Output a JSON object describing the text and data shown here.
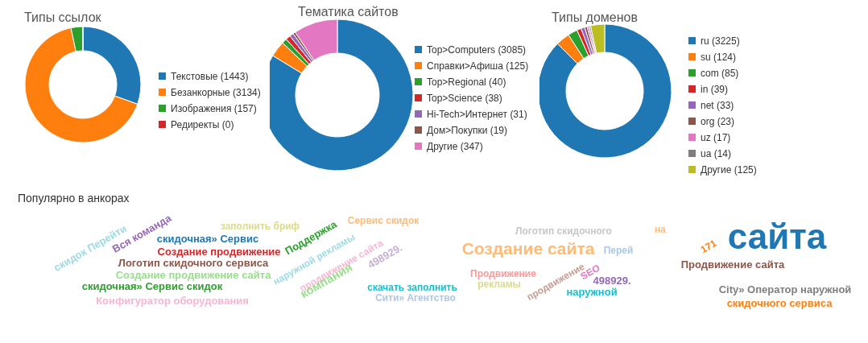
{
  "chart_data": [
    {
      "type": "donut",
      "title": "Типы ссылок",
      "categories": [
        "Текстовые (1443)",
        "Безанкорные (3134)",
        "Изображения (157)",
        "Редиректы (0)"
      ],
      "values": [
        1443,
        3134,
        157,
        0
      ],
      "colors": [
        "#1f77b4",
        "#ff7f0e",
        "#2ca02c",
        "#d62728"
      ],
      "legend": "right"
    },
    {
      "type": "donut",
      "title": "Тематика сайтов",
      "categories": [
        "Top>Computers (3085)",
        "Справки>Афиша (125)",
        "Top>Regional (40)",
        "Top>Science (38)",
        "Hi-Tech>Интернет (31)",
        "Дом>Покупки (19)",
        "Другие (347)"
      ],
      "values": [
        3085,
        125,
        40,
        38,
        31,
        19,
        347
      ],
      "colors": [
        "#1f77b4",
        "#ff7f0e",
        "#2ca02c",
        "#d62728",
        "#9467bd",
        "#8c564b",
        "#e377c2"
      ],
      "legend": "right"
    },
    {
      "type": "donut",
      "title": "Типы доменов",
      "categories": [
        "ru (3225)",
        "su (124)",
        "com (85)",
        "in (39)",
        "net (33)",
        "org (23)",
        "uz (17)",
        "ua (14)",
        "Другие (125)"
      ],
      "values": [
        3225,
        124,
        85,
        39,
        33,
        23,
        17,
        14,
        125
      ],
      "colors": [
        "#1f77b4",
        "#ff7f0e",
        "#2ca02c",
        "#d62728",
        "#9467bd",
        "#8c564b",
        "#e377c2",
        "#7f7f7f",
        "#bcbd22"
      ],
      "legend": "right"
    },
    {
      "type": "other",
      "title": "Популярно в анкорах",
      "annotations": [
        "скидок Перейти",
        "Вся команда",
        "скидочная» Сервис",
        "Создание продвижение",
        "Логотип скидочного сервиса",
        "Создание продвижение сайта",
        "скидочная» Сервис скидок",
        "Конфигуратор оборудования",
        "заполнить бриф",
        "Поддержка",
        "Сервис скидок",
        "наружной рекламы",
        "продвижение сайта",
        "компания",
        "498929.",
        "скачать заполнить",
        "Сити» Агентство",
        "Логотип скидочного",
        "Создание сайта",
        "Перей",
        "на",
        "171",
        "сайта",
        "Продвижение сайта",
        "Продвижение",
        "рекламы",
        "продвижение",
        "SEO",
        "498929.",
        "наружной",
        "City» Оператор наружной",
        "скидочного сервиса"
      ]
    }
  ]
}
